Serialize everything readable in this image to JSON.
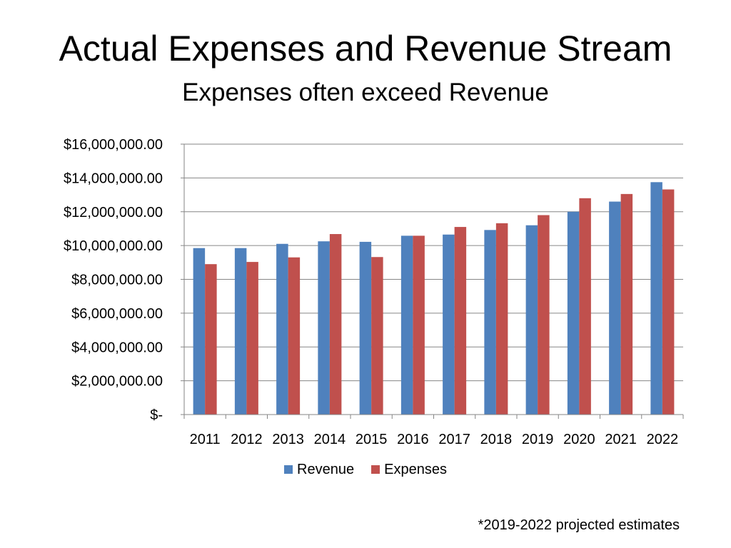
{
  "chart_data": {
    "type": "bar",
    "title": "Actual Expenses and Revenue Stream",
    "subtitle": "Expenses often exceed Revenue",
    "categories": [
      "2011",
      "2012",
      "2013",
      "2014",
      "2015",
      "2016",
      "2017",
      "2018",
      "2019",
      "2020",
      "2021",
      "2022"
    ],
    "series": [
      {
        "name": "Revenue",
        "color": "#4F81BD",
        "values": [
          9850000,
          9850000,
          10100000,
          10250000,
          10220000,
          10580000,
          10650000,
          10920000,
          11200000,
          12000000,
          12600000,
          13750000
        ]
      },
      {
        "name": "Expenses",
        "color": "#C0504D",
        "values": [
          8900000,
          9030000,
          9300000,
          10680000,
          9320000,
          10580000,
          11100000,
          11320000,
          11800000,
          12800000,
          13050000,
          13320000
        ]
      }
    ],
    "ylim": [
      0,
      16000000
    ],
    "y_ticks": [
      0,
      2000000,
      4000000,
      6000000,
      8000000,
      10000000,
      12000000,
      14000000,
      16000000
    ],
    "y_tick_labels": [
      "$-",
      "$2,000,000.00",
      "$4,000,000.00",
      "$6,000,000.00",
      "$8,000,000.00",
      "$10,000,000.00",
      "$12,000,000.00",
      "$14,000,000.00",
      "$16,000,000.00"
    ],
    "xlabel": "",
    "ylabel": "",
    "grid": true,
    "gridline_color": "#868686",
    "legend_position": "bottom",
    "footnote": "*2019-2022 projected estimates"
  }
}
